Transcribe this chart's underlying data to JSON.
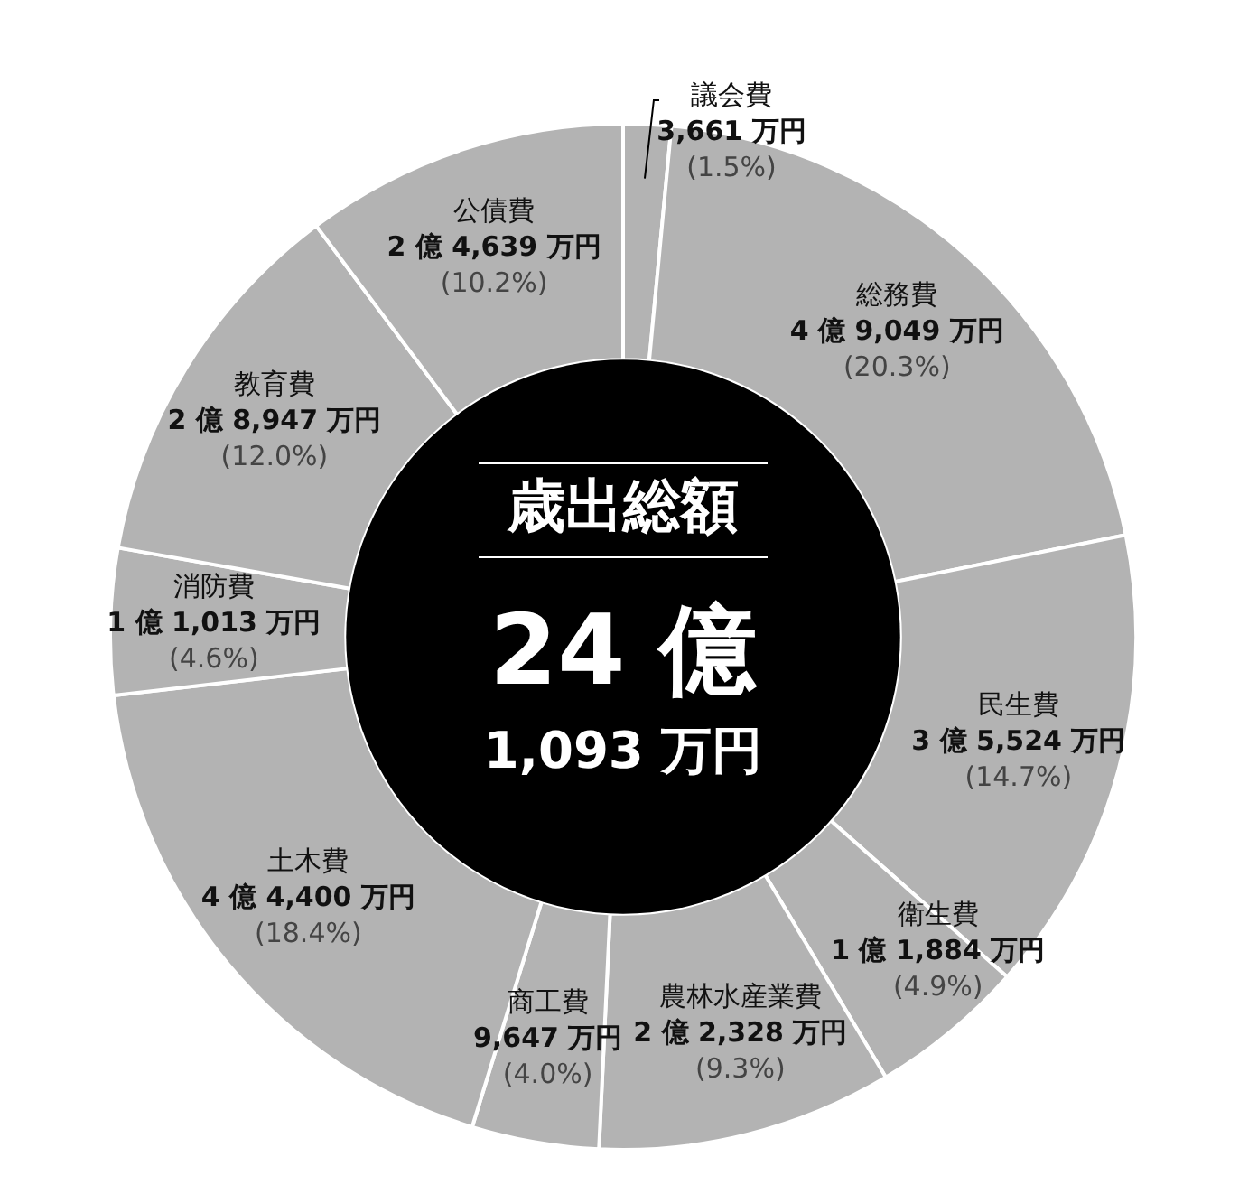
{
  "chart_data": {
    "type": "donut",
    "title": "歳出総額",
    "annotations": [
      "24 億",
      "1,093 万円"
    ],
    "categories": [
      "議会費",
      "総務費",
      "民生費",
      "衛生費",
      "農林水産業費",
      "商工費",
      "土木費",
      "消防費",
      "教育費",
      "公債費"
    ],
    "values": [
      1.5,
      20.3,
      14.7,
      4.9,
      9.3,
      4.0,
      18.4,
      4.6,
      12.0,
      10.2
    ],
    "value_labels": [
      "3,661 万円\n(1.5%)",
      "4 億 9,049 万円\n(20.3%)",
      "3 億 5,524 万円\n(14.7%)",
      "1 億 1,884 万円\n(4.9%)",
      "2 億 2,328 万円\n(9.3%)",
      "9,647 万円\n(4.0%)",
      "4 億 4,400 万円\n(18.4%)",
      "1 億 1,013 万円\n(4.6%)",
      "2 億 8,947 万円\n(12.0%)",
      "2 億 4,639 万円\n(10.2%)"
    ],
    "colors": [
      "#b3b3b3",
      "#b3b3b3",
      "#b3b3b3",
      "#b3b3b3",
      "#b3b3b3",
      "#b3b3b3",
      "#b3b3b3",
      "#b3b3b3",
      "#b3b3b3",
      "#b3b3b3"
    ],
    "legend": false
  }
}
